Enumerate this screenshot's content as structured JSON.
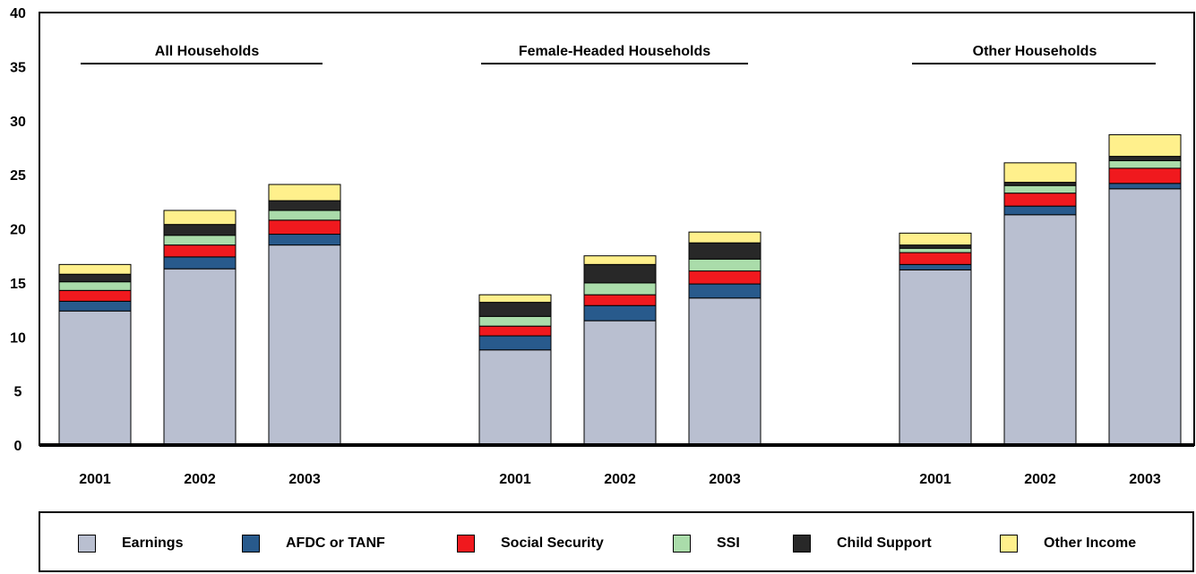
{
  "chart_data": {
    "type": "bar",
    "stacked": true,
    "ylim": [
      0,
      40
    ],
    "yticks": [
      "0",
      "5",
      "10",
      "15",
      "20",
      "25",
      "30",
      "35",
      "40"
    ],
    "groups": [
      {
        "label": "All Households",
        "categories": [
          "2001",
          "2002",
          "2003"
        ],
        "series_values": {
          "Earnings": [
            12.4,
            16.3,
            18.5
          ],
          "AFDC or TANF": [
            0.9,
            1.1,
            1.0
          ],
          "Social Security": [
            1.0,
            1.1,
            1.3
          ],
          "SSI": [
            0.8,
            0.9,
            0.9
          ],
          "Child Support": [
            0.7,
            1.0,
            0.9
          ],
          "Other Income": [
            0.9,
            1.3,
            1.5
          ]
        }
      },
      {
        "label": "Female-Headed Households",
        "categories": [
          "2001",
          "2002",
          "2003"
        ],
        "series_values": {
          "Earnings": [
            8.8,
            11.5,
            13.6
          ],
          "AFDC or TANF": [
            1.3,
            1.4,
            1.3
          ],
          "Social Security": [
            0.9,
            1.0,
            1.2
          ],
          "SSI": [
            0.9,
            1.1,
            1.1
          ],
          "Child Support": [
            1.3,
            1.7,
            1.5
          ],
          "Other Income": [
            0.7,
            0.8,
            1.0
          ]
        }
      },
      {
        "label": "Other Households",
        "categories": [
          "2001",
          "2002",
          "2003"
        ],
        "series_values": {
          "Earnings": [
            16.2,
            21.3,
            23.7
          ],
          "AFDC or TANF": [
            0.5,
            0.8,
            0.5
          ],
          "Social Security": [
            1.1,
            1.2,
            1.4
          ],
          "SSI": [
            0.4,
            0.7,
            0.7
          ],
          "Child Support": [
            0.3,
            0.3,
            0.4
          ],
          "Other Income": [
            1.1,
            1.8,
            2.0
          ]
        }
      }
    ],
    "series": [
      {
        "name": "Earnings",
        "color": "#b9bfd0"
      },
      {
        "name": "AFDC or TANF",
        "color": "#285a8c"
      },
      {
        "name": "Social Security",
        "color": "#f0191e"
      },
      {
        "name": "SSI",
        "color": "#aadcaa"
      },
      {
        "name": "Child Support",
        "color": "#282828"
      },
      {
        "name": "Other Income",
        "color": "#fff08c"
      }
    ],
    "legend_position": "bottom",
    "grid": false
  }
}
